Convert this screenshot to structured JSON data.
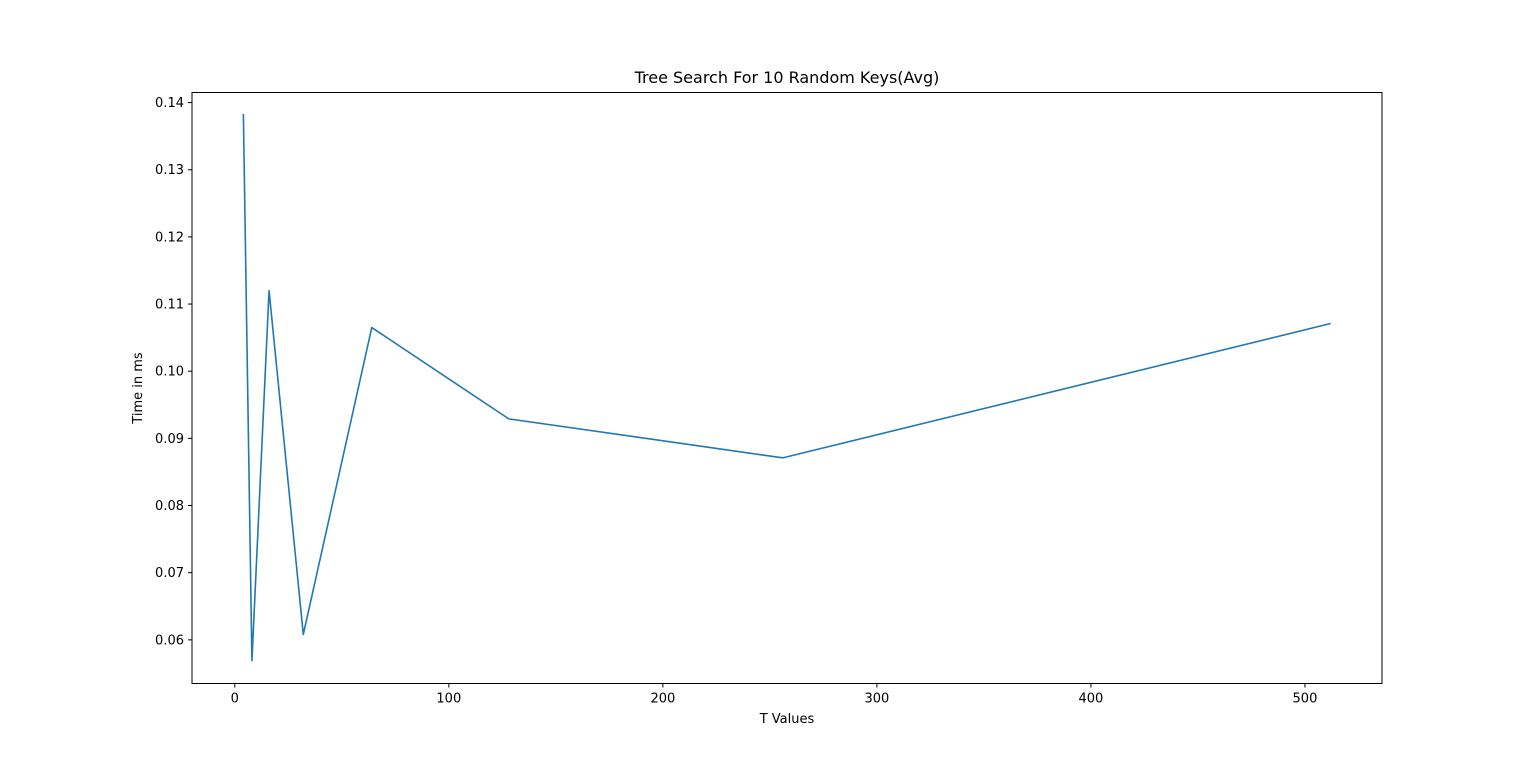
{
  "chart_data": {
    "type": "line",
    "title": "Tree Search For 10 Random Keys(Avg)",
    "xlabel": "T Values",
    "ylabel": "Time in ms",
    "xlim": [
      -20,
      536
    ],
    "ylim": [
      0.0535,
      0.1415
    ],
    "xticks": [
      0,
      100,
      200,
      300,
      400,
      500
    ],
    "yticks": [
      0.06,
      0.07,
      0.08,
      0.09,
      0.1,
      0.11,
      0.12,
      0.13,
      0.14
    ],
    "xtick_labels": [
      "0",
      "100",
      "200",
      "300",
      "400",
      "500"
    ],
    "ytick_labels": [
      "0.06",
      "0.07",
      "0.08",
      "0.09",
      "0.10",
      "0.11",
      "0.12",
      "0.13",
      "0.14"
    ],
    "grid": false,
    "series": [
      {
        "color": "#1f77b4",
        "x": [
          4,
          8,
          16,
          32,
          64,
          128,
          256,
          512
        ],
        "y": [
          0.1383,
          0.0569,
          0.112,
          0.0608,
          0.1065,
          0.0929,
          0.0871,
          0.1071
        ]
      }
    ]
  }
}
